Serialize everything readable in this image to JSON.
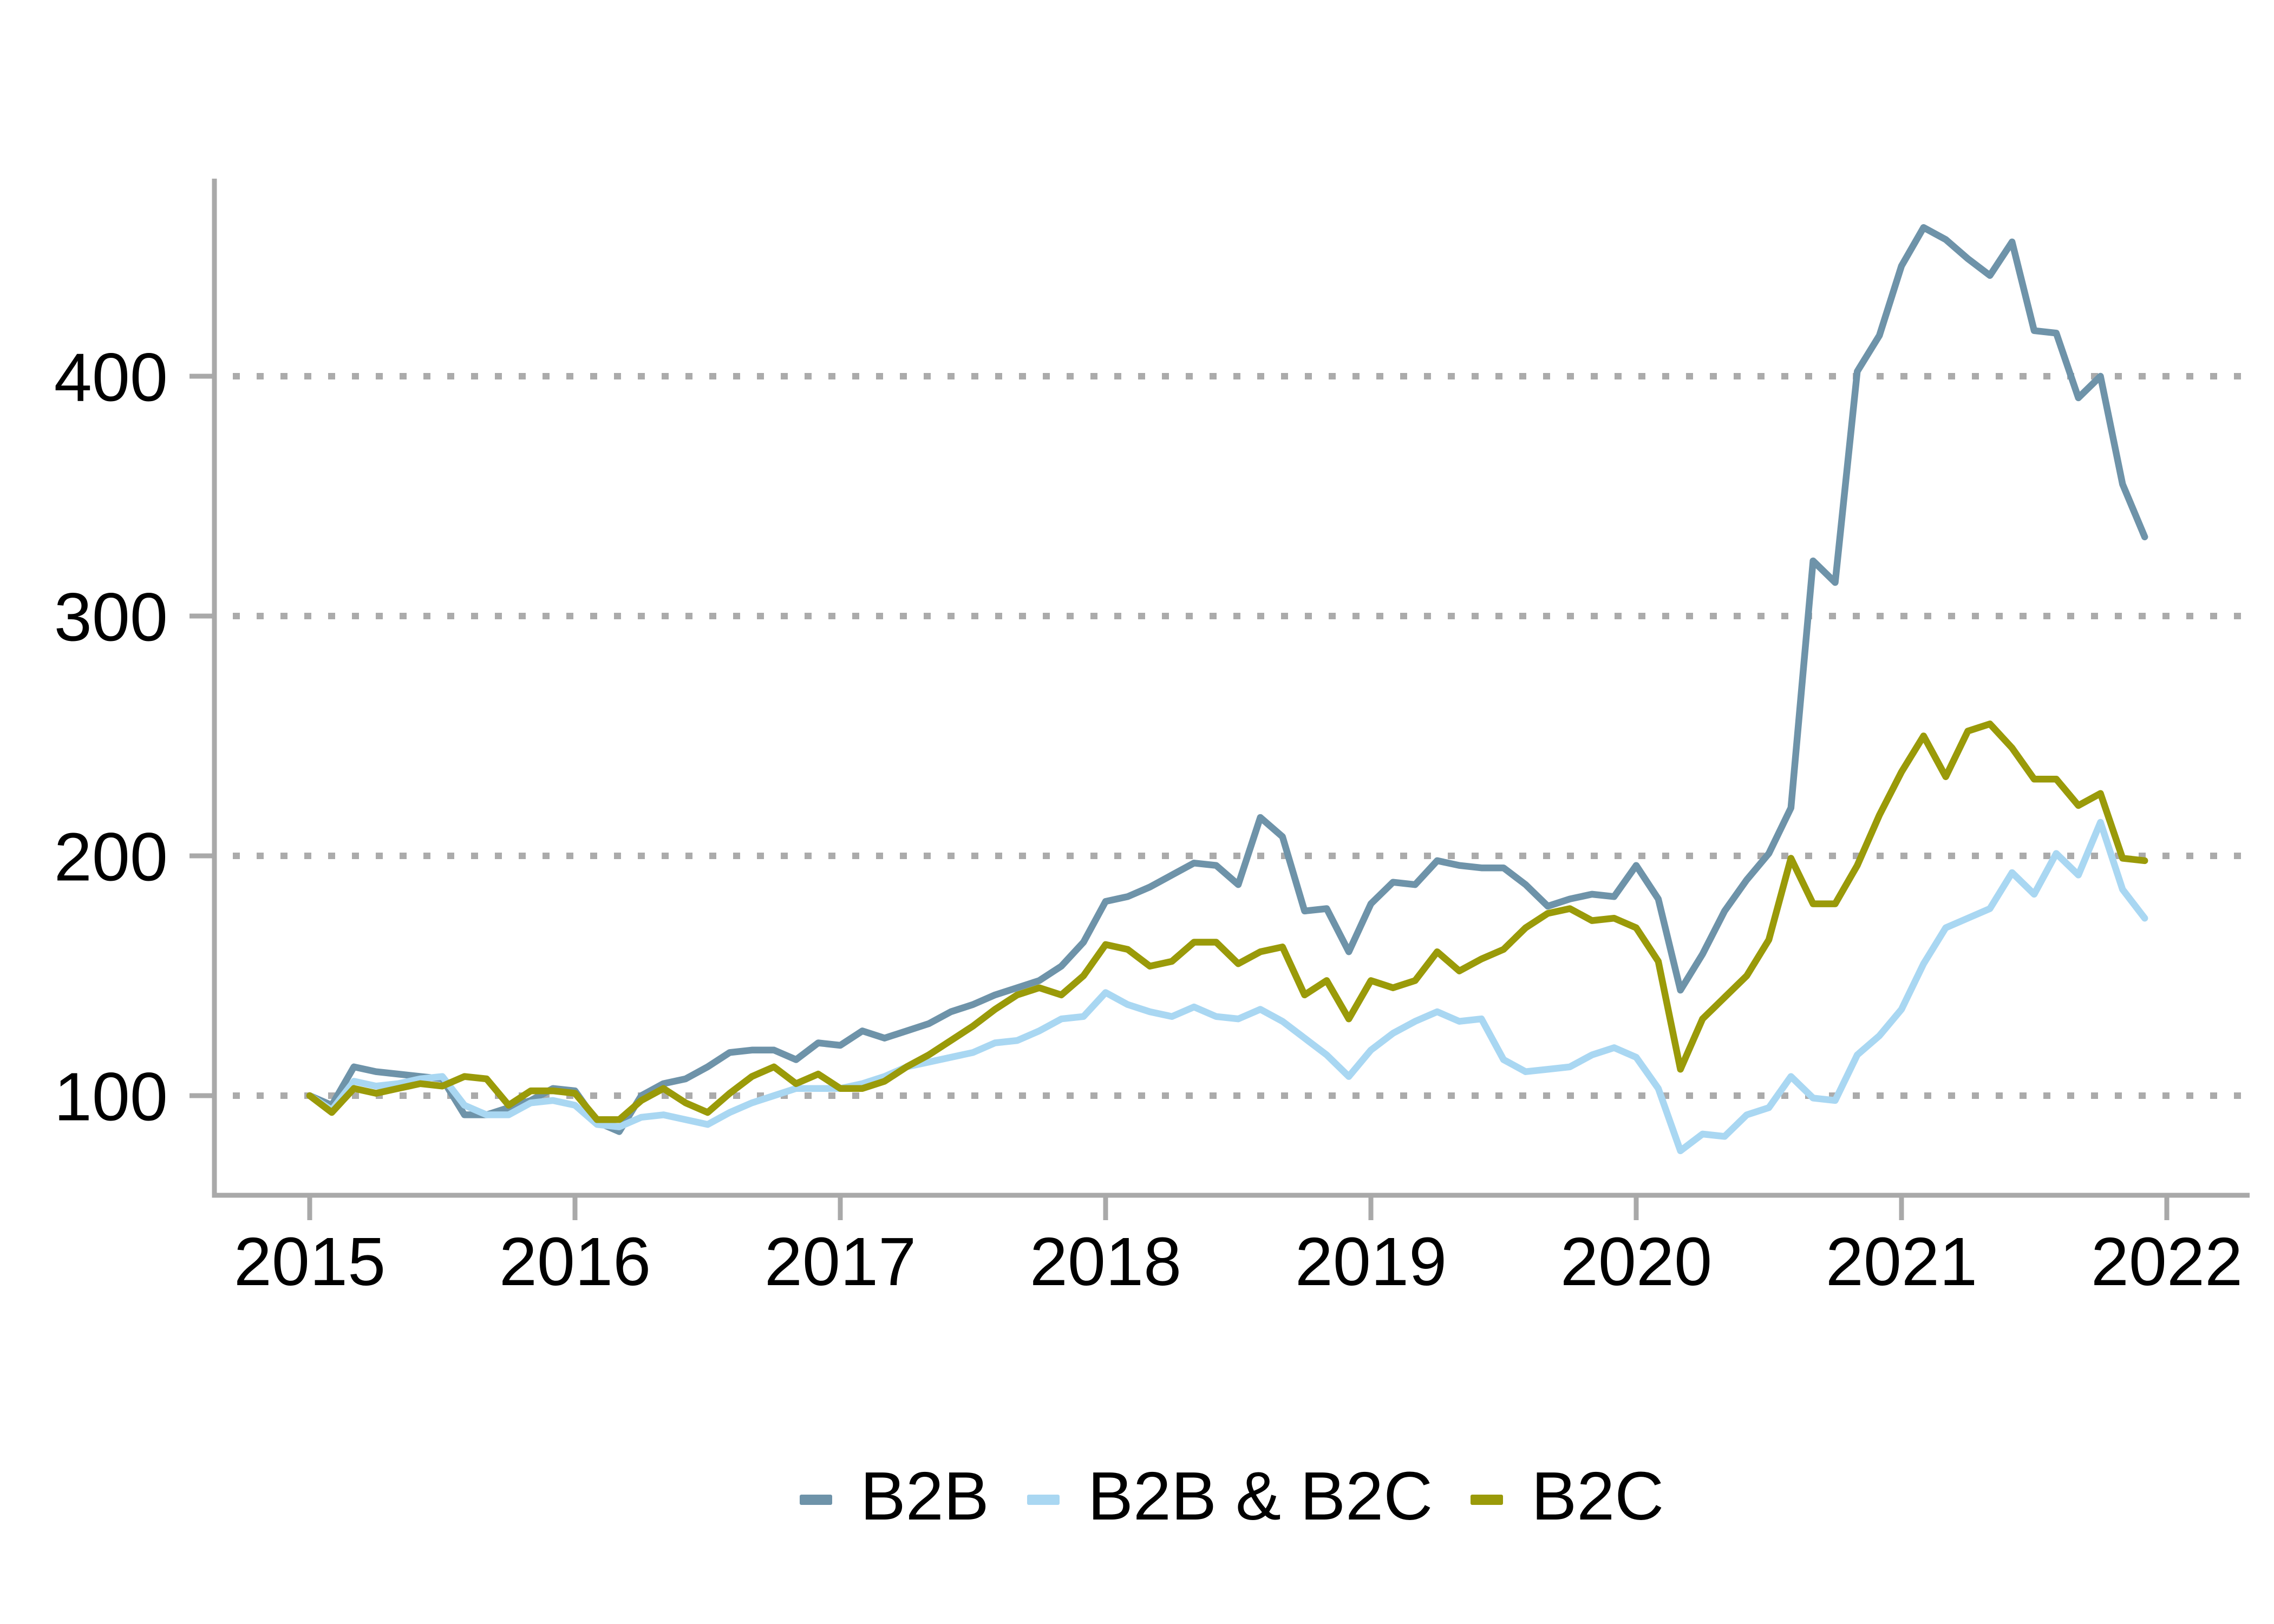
{
  "chart_data": {
    "type": "line",
    "title": "",
    "xlabel": "",
    "ylabel": "",
    "x_unit": "month",
    "x_start": "2015-01",
    "x_end": "2021-12",
    "x_ticks": [
      "2015",
      "2016",
      "2017",
      "2018",
      "2019",
      "2020",
      "2021",
      "2022"
    ],
    "y_ticks": [
      "100",
      "200",
      "300",
      "400"
    ],
    "ylim_drawn": [
      58,
      480
    ],
    "grid": "horizontal dotted lines at each y tick",
    "legend_position": "bottom-center",
    "index_base": 100,
    "series": [
      {
        "name": "B2B",
        "color": "#6E93A9",
        "values": [
          100,
          96,
          112,
          110,
          109,
          108,
          107,
          92,
          92,
          95,
          98,
          103,
          102,
          89,
          85,
          100,
          105,
          107,
          112,
          118,
          119,
          119,
          115,
          122,
          121,
          127,
          124,
          127,
          130,
          135,
          138,
          142,
          145,
          148,
          154,
          164,
          181,
          183,
          187,
          192,
          197,
          196,
          188,
          216,
          208,
          177,
          178,
          160,
          180,
          189,
          188,
          198,
          196,
          195,
          195,
          188,
          179,
          182,
          184,
          183,
          196,
          182,
          144,
          159,
          177,
          190,
          201,
          220,
          323,
          314,
          402,
          417,
          446,
          462,
          457,
          449,
          442,
          456,
          419,
          418,
          391,
          400,
          355,
          333
        ]
      },
      {
        "name": "B2B & B2C",
        "color": "#A9D7F2",
        "values": [
          100,
          94,
          106,
          104,
          105,
          107,
          108,
          96,
          92,
          92,
          97,
          98,
          96,
          88,
          87,
          91,
          92,
          90,
          88,
          93,
          97,
          100,
          103,
          103,
          103,
          105,
          108,
          112,
          114,
          116,
          118,
          122,
          123,
          127,
          132,
          133,
          143,
          138,
          135,
          133,
          137,
          133,
          132,
          136,
          131,
          124,
          117,
          108,
          119,
          126,
          131,
          135,
          131,
          132,
          115,
          110,
          111,
          112,
          117,
          120,
          116,
          103,
          77,
          84,
          83,
          92,
          95,
          108,
          99,
          98,
          117,
          125,
          136,
          155,
          170,
          174,
          178,
          193,
          184,
          201,
          192,
          214,
          186,
          174
        ]
      },
      {
        "name": "B2C",
        "color": "#9A9A09",
        "values": [
          100,
          93,
          103,
          101,
          103,
          105,
          104,
          108,
          107,
          96,
          102,
          102,
          101,
          90,
          90,
          98,
          103,
          97,
          93,
          101,
          108,
          112,
          105,
          109,
          103,
          103,
          106,
          112,
          117,
          123,
          129,
          136,
          142,
          145,
          142,
          150,
          163,
          161,
          154,
          156,
          164,
          164,
          155,
          160,
          162,
          142,
          148,
          132,
          148,
          145,
          148,
          160,
          152,
          157,
          161,
          170,
          176,
          178,
          173,
          174,
          170,
          156,
          111,
          132,
          141,
          150,
          165,
          199,
          180,
          180,
          196,
          217,
          235,
          250,
          233,
          252,
          255,
          245,
          232,
          232,
          221,
          226,
          199,
          198
        ]
      }
    ]
  },
  "y_axis": {
    "tick_labels": [
      "100",
      "200",
      "300",
      "400"
    ]
  },
  "x_axis": {
    "tick_labels": [
      "2015",
      "2016",
      "2017",
      "2018",
      "2019",
      "2020",
      "2021",
      "2022"
    ]
  },
  "legend": {
    "items": [
      {
        "label": "B2B"
      },
      {
        "label": "B2B & B2C"
      },
      {
        "label": "B2C"
      }
    ]
  }
}
